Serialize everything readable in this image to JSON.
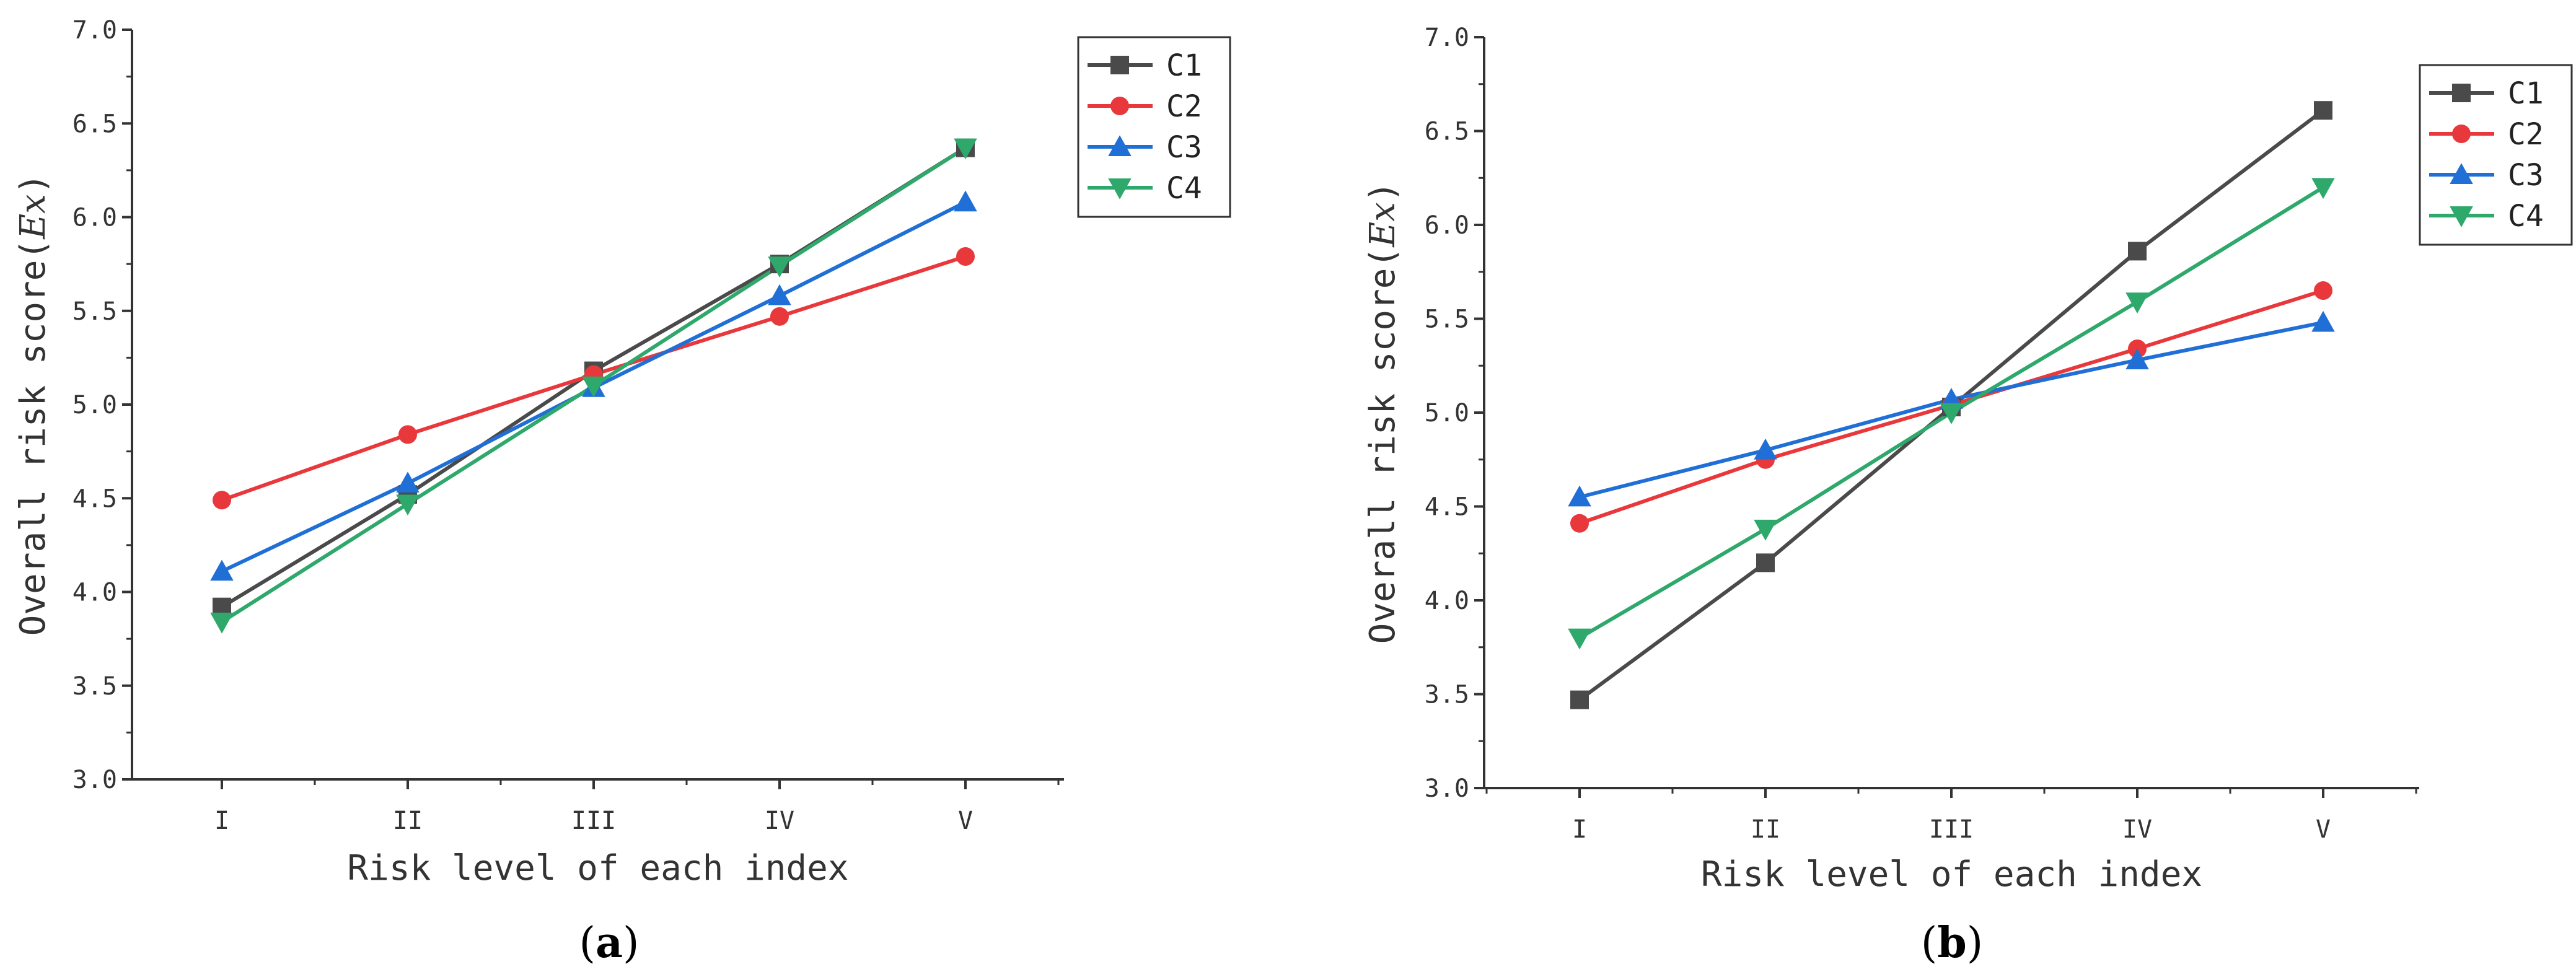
{
  "chart_data": [
    {
      "type": "line",
      "caption_open": "(",
      "caption_letter": "a",
      "caption_close": ")",
      "categories": [
        "I",
        "II",
        "III",
        "IV",
        "V"
      ],
      "xlabel": "Risk level of each index",
      "ylabel_prefix": "Overall risk score(",
      "ylabel_var": "Ex",
      "ylabel_suffix": ")",
      "ylim": [
        3.0,
        7.0
      ],
      "yticks": [
        "3.0",
        "3.5",
        "4.0",
        "4.5",
        "5.0",
        "5.5",
        "6.0",
        "6.5",
        "7.0"
      ],
      "grid": false,
      "legend_position": "top-right",
      "series": [
        {
          "name": "C1",
          "color": "#4a4a4a",
          "marker": "square",
          "values": [
            3.92,
            4.52,
            5.18,
            5.75,
            6.37
          ]
        },
        {
          "name": "C2",
          "color": "#e8383b",
          "marker": "circle",
          "values": [
            4.49,
            4.84,
            5.16,
            5.47,
            5.79
          ]
        },
        {
          "name": "C3",
          "color": "#1f6fd6",
          "marker": "triangle-up",
          "values": [
            4.11,
            4.58,
            5.09,
            5.58,
            6.08
          ]
        },
        {
          "name": "C4",
          "color": "#2ea86b",
          "marker": "triangle-down",
          "values": [
            3.84,
            4.47,
            5.1,
            5.74,
            6.37
          ]
        }
      ]
    },
    {
      "type": "line",
      "caption_open": "(",
      "caption_letter": "b",
      "caption_close": ")",
      "categories": [
        "I",
        "II",
        "III",
        "IV",
        "V"
      ],
      "xlabel": "Risk level of each index",
      "ylabel_prefix": "Overall risk score(",
      "ylabel_var": "Ex",
      "ylabel_suffix": ")",
      "ylim": [
        3.0,
        7.0
      ],
      "yticks": [
        "3.0",
        "3.5",
        "4.0",
        "4.5",
        "5.0",
        "5.5",
        "6.0",
        "6.5",
        "7.0"
      ],
      "grid": false,
      "legend_position": "top-right",
      "series": [
        {
          "name": "C1",
          "color": "#4a4a4a",
          "marker": "square",
          "values": [
            3.47,
            4.2,
            5.03,
            5.86,
            6.61
          ]
        },
        {
          "name": "C2",
          "color": "#e8383b",
          "marker": "circle",
          "values": [
            4.41,
            4.75,
            5.04,
            5.34,
            5.65
          ]
        },
        {
          "name": "C3",
          "color": "#1f6fd6",
          "marker": "triangle-up",
          "values": [
            4.55,
            4.8,
            5.07,
            5.28,
            5.48
          ]
        },
        {
          "name": "C4",
          "color": "#2ea86b",
          "marker": "triangle-down",
          "values": [
            3.8,
            4.38,
            5.0,
            5.59,
            6.2
          ]
        }
      ]
    }
  ]
}
